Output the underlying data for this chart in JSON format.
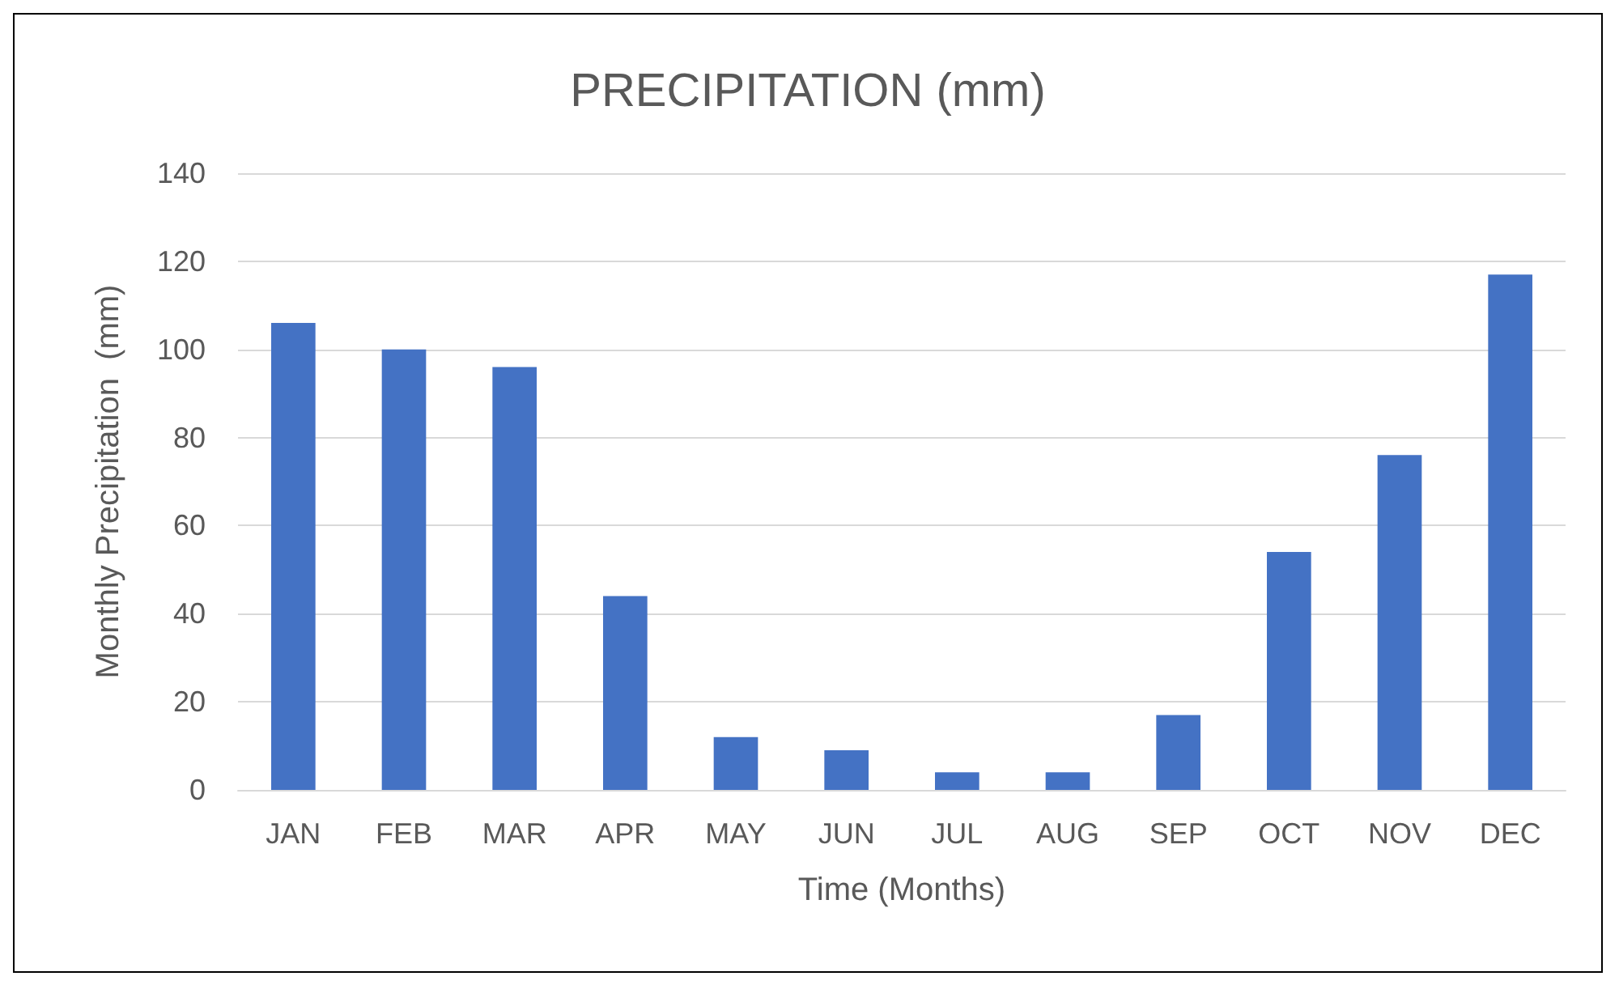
{
  "chart_data": {
    "type": "bar",
    "title": "PRECIPITATION (mm)",
    "xlabel": "Time (Months)",
    "ylabel": "Monthly Precipitation  (mm)",
    "categories": [
      "JAN",
      "FEB",
      "MAR",
      "APR",
      "MAY",
      "JUN",
      "JUL",
      "AUG",
      "SEP",
      "OCT",
      "NOV",
      "DEC"
    ],
    "values": [
      106,
      100,
      96,
      44,
      12,
      9,
      4,
      4,
      17,
      54,
      76,
      117
    ],
    "color": "#4472c4",
    "ylim": [
      0,
      140
    ],
    "yticks": [
      0,
      20,
      40,
      60,
      80,
      100,
      120,
      140
    ],
    "grid": true
  }
}
